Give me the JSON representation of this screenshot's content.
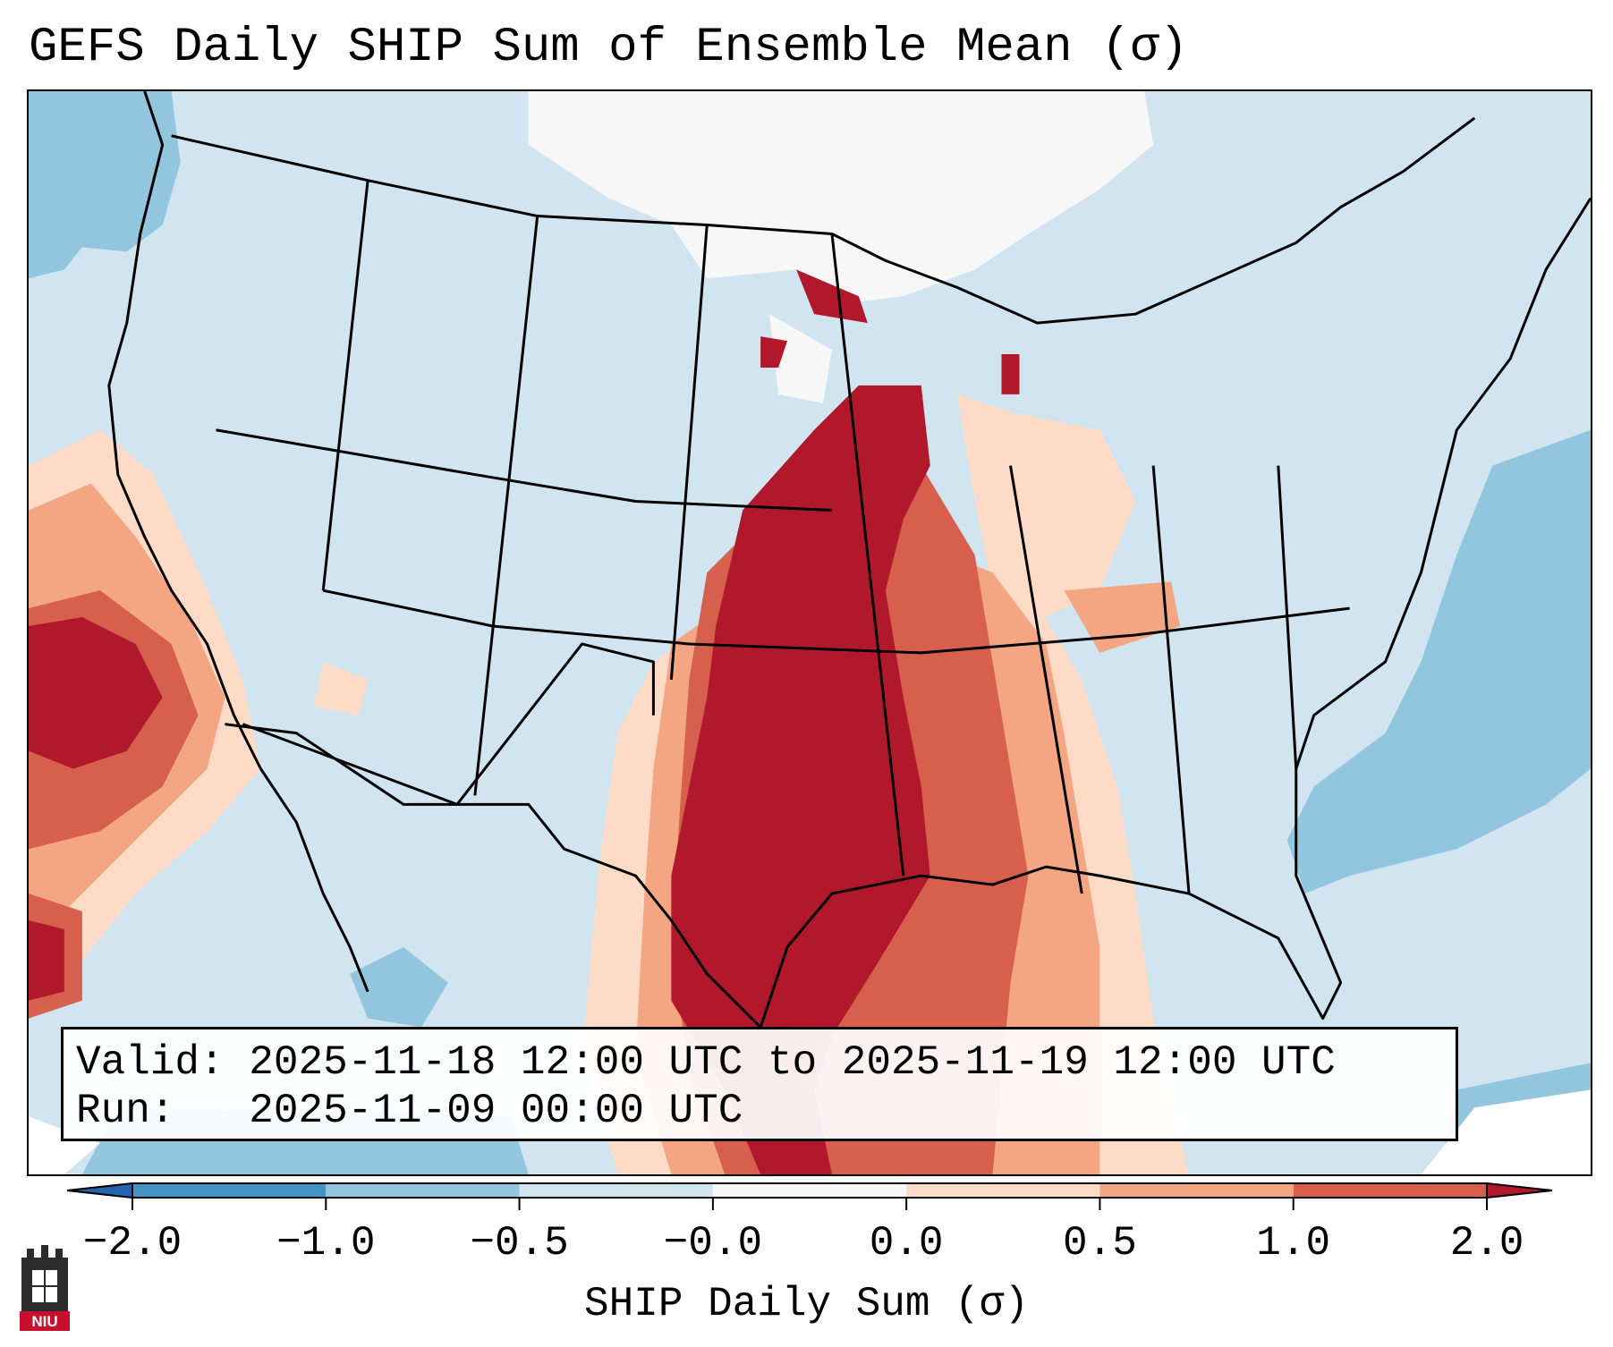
{
  "title": "GEFS Daily SHIP Sum of Ensemble Mean (σ)",
  "info": {
    "valid_label": "Valid:",
    "valid_value": "2025-11-18 12:00 UTC to 2025-11-19 12:00 UTC",
    "run_label": "Run:",
    "run_value": "2025-11-09 00:00 UTC"
  },
  "colorbar": {
    "label": "SHIP Daily Sum (σ)",
    "ticks": [
      "−2.0",
      "−1.0",
      "−0.5",
      "−0.0",
      "0.0",
      "0.5",
      "1.0",
      "2.0"
    ],
    "colors": [
      "#4393c3",
      "#92c5de",
      "#d1e5f0",
      "#f7f7f7",
      "#fddbc7",
      "#f4a582",
      "#d6604d",
      "#b2182b"
    ],
    "extend": "both"
  },
  "map": {
    "region": "CONUS",
    "background_color": "#d1e5f0",
    "levels": [
      {
        "name": "weak-negative",
        "color": "#92c5de"
      },
      {
        "name": "near-zero",
        "color": "#f7f7f7"
      },
      {
        "name": "weak-positive",
        "color": "#fddbc7"
      },
      {
        "name": "moderate-positive",
        "color": "#f4a582"
      },
      {
        "name": "strong-positive",
        "color": "#d6604d"
      },
      {
        "name": "extreme-positive",
        "color": "#b2182b"
      }
    ]
  },
  "logo": {
    "name": "niu-logo-icon",
    "text": "NIU"
  }
}
